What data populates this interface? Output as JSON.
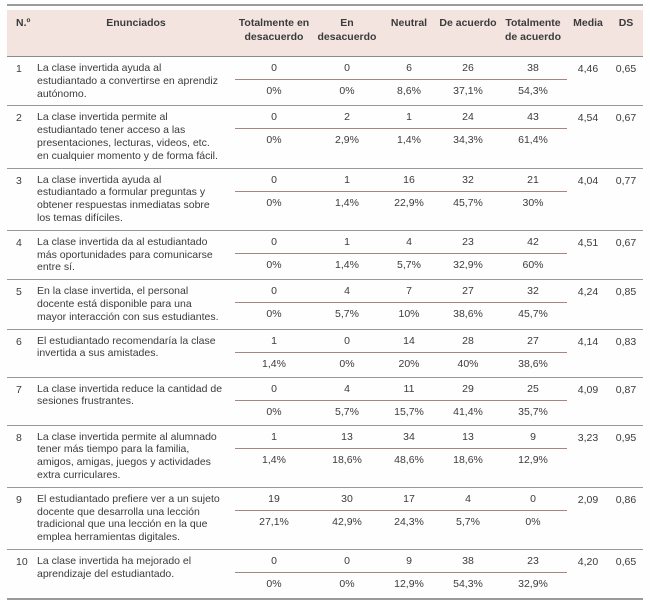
{
  "table": {
    "headers": {
      "num": "N.º",
      "statement": "Enunciados",
      "likert": [
        "Totalmente en desacuerdo",
        "En desacuerdo",
        "Neutral",
        "De acuerdo",
        "Totalmente de acuerdo"
      ],
      "media": "Media",
      "ds": "DS"
    },
    "rows": [
      {
        "num": "1",
        "statement": "La clase invertida ayuda al estudiantado a convertirse en aprendiz autónomo.",
        "counts": [
          "0",
          "0",
          "6",
          "26",
          "38"
        ],
        "percents": [
          "0%",
          "0%",
          "8,6%",
          "37,1%",
          "54,3%"
        ],
        "media": "4,46",
        "ds": "0,65"
      },
      {
        "num": "2",
        "statement": "La clase invertida permite al estudiantado tener acceso a las presentaciones, lecturas, videos, etc. en cualquier momento y de forma fácil.",
        "counts": [
          "0",
          "2",
          "1",
          "24",
          "43"
        ],
        "percents": [
          "0%",
          "2,9%",
          "1,4%",
          "34,3%",
          "61,4%"
        ],
        "media": "4,54",
        "ds": "0,67"
      },
      {
        "num": "3",
        "statement": "La clase invertida ayuda al estudiantado a formular preguntas y obtener respuestas inmediatas sobre los temas difíciles.",
        "counts": [
          "0",
          "1",
          "16",
          "32",
          "21"
        ],
        "percents": [
          "0%",
          "1,4%",
          "22,9%",
          "45,7%",
          "30%"
        ],
        "media": "4,04",
        "ds": "0,77"
      },
      {
        "num": "4",
        "statement": "La clase invertida da al estudiantado más oportunidades para comunicarse entre sí.",
        "counts": [
          "0",
          "1",
          "4",
          "23",
          "42"
        ],
        "percents": [
          "0%",
          "1,4%",
          "5,7%",
          "32,9%",
          "60%"
        ],
        "media": "4,51",
        "ds": "0,67"
      },
      {
        "num": "5",
        "statement": "En la clase invertida, el personal docente está disponible para una mayor interacción con sus estudiantes.",
        "counts": [
          "0",
          "4",
          "7",
          "27",
          "32"
        ],
        "percents": [
          "0%",
          "5,7%",
          "10%",
          "38,6%",
          "45,7%"
        ],
        "media": "4,24",
        "ds": "0,85"
      },
      {
        "num": "6",
        "statement": "El estudiantado recomendaría la clase invertida a sus amistades.",
        "counts": [
          "1",
          "0",
          "14",
          "28",
          "27"
        ],
        "percents": [
          "1,4%",
          "0%",
          "20%",
          "40%",
          "38,6%"
        ],
        "media": "4,14",
        "ds": "0,83"
      },
      {
        "num": "7",
        "statement": "La clase invertida reduce la cantidad de sesiones frustrantes.",
        "counts": [
          "0",
          "4",
          "11",
          "29",
          "25"
        ],
        "percents": [
          "0%",
          "5,7%",
          "15,7%",
          "41,4%",
          "35,7%"
        ],
        "media": "4,09",
        "ds": "0,87"
      },
      {
        "num": "8",
        "statement": "La clase invertida permite al alumnado tener más tiempo para la familia, amigos, amigas, juegos y actividades extra curriculares.",
        "counts": [
          "1",
          "13",
          "34",
          "13",
          "9"
        ],
        "percents": [
          "1,4%",
          "18,6%",
          "48,6%",
          "18,6%",
          "12,9%"
        ],
        "media": "3,23",
        "ds": "0,95"
      },
      {
        "num": "9",
        "statement": "El estudiantado prefiere ver a un sujeto docente que desarrolla una lección tradicional que una lección en la que emplea herramientas digitales.",
        "counts": [
          "19",
          "30",
          "17",
          "4",
          "0"
        ],
        "percents": [
          "27,1%",
          "42,9%",
          "24,3%",
          "5,7%",
          "0%"
        ],
        "media": "2,09",
        "ds": "0,86"
      },
      {
        "num": "10",
        "statement": "La clase invertida ha mejorado el aprendizaje del estudiantado.",
        "counts": [
          "0",
          "0",
          "9",
          "38",
          "23"
        ],
        "percents": [
          "0%",
          "0%",
          "12,9%",
          "54,3%",
          "32,9%"
        ],
        "media": "4,20",
        "ds": "0,65"
      }
    ]
  }
}
